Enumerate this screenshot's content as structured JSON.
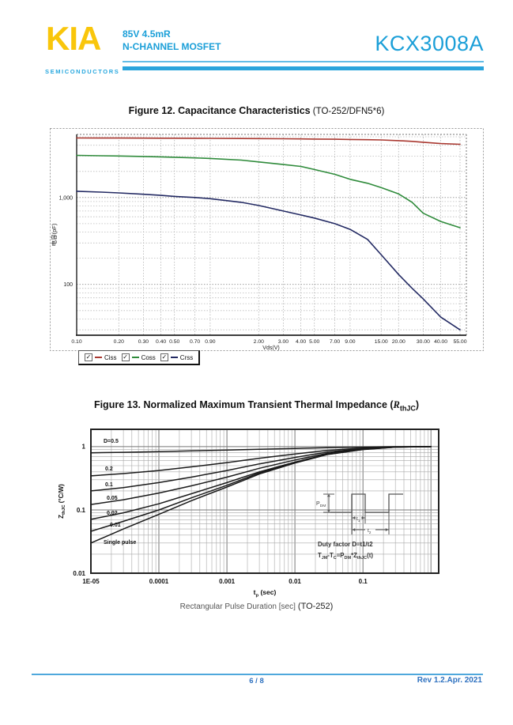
{
  "header": {
    "logo": "KIA",
    "logo_sub": "SEMICONDUCTORS",
    "spec_line1": "85V   4.5mR",
    "spec_line2": "N-CHANNEL MOSFET",
    "part_number": "KCX3008A",
    "accent_color": "#1B9FD8",
    "logo_color": "#F9C60B"
  },
  "figure12": {
    "title": "Figure 12. Capacitance Characteristics",
    "title_suffix": " (TO-252/DFN5*6)",
    "legend": [
      {
        "label": "Ciss",
        "color": "#A93830"
      },
      {
        "label": "Coss",
        "color": "#2F8B3B"
      },
      {
        "label": "Crss",
        "color": "#232A63"
      }
    ]
  },
  "figure13": {
    "title_main": "Figure 13. Normalized Maximum Transient Thermal Impedance (",
    "title_sym": "R",
    "title_sub": "thJC",
    "title_close": ")",
    "caption": "Rectangular Pulse Duration [sec]",
    "caption_suffix": " (TO-252)",
    "inset": {
      "p_main": "P",
      "p_sub": "DM",
      "t1_main": "t",
      "t1_sub": "1",
      "t2_main": "t",
      "t2_sub": "2",
      "line1": "Duty factor D=t1/t2",
      "line2_parts": [
        [
          "T",
          "JM"
        ],
        [
          "-T",
          "C"
        ],
        [
          "=P",
          "DM"
        ],
        [
          "*Z",
          "thJC"
        ],
        [
          "(t)",
          ""
        ]
      ]
    }
  },
  "footer": {
    "page": "6 / 8",
    "rev": "Rev 1.2.Apr. 2021",
    "color": "#2F72C0"
  },
  "chart_data": [
    {
      "id": "fig12",
      "type": "line",
      "title": "Figure 12. Capacitance Characteristics (TO-252/DFN5*6)",
      "x_scale": "log",
      "y_scale": "log",
      "grid": "dotted",
      "xlabel": "Vds(V)",
      "ylabel": "电容(pF)",
      "xlim": [
        0.1,
        61
      ],
      "ylim": [
        26,
        5330
      ],
      "x_ticks": [
        0.1,
        0.2,
        0.3,
        0.4,
        0.5,
        0.7,
        0.9,
        2,
        3,
        4,
        5,
        7,
        9,
        15,
        20,
        30,
        40,
        55
      ],
      "x_tick_labels": [
        "0.10",
        "0.20",
        "0.30",
        "0.40",
        "0.50",
        "0.70",
        "0.90",
        "2.00",
        "3.00",
        "4.00",
        "5.00",
        "7.00",
        "9.00",
        "15.00",
        "20.00",
        "30.00",
        "40.00",
        "55.00"
      ],
      "y_ticks": [
        1000,
        100
      ],
      "y_tick_labels": [
        "1,000",
        "100"
      ],
      "x": [
        0.1,
        0.15,
        0.2,
        0.3,
        0.4,
        0.5,
        0.7,
        0.9,
        1.5,
        2,
        3,
        4,
        5,
        7,
        9,
        12,
        15,
        20,
        25,
        30,
        40,
        55
      ],
      "series": [
        {
          "name": "Ciss",
          "color": "#A93830",
          "values": [
            4850,
            4845,
            4840,
            4830,
            4820,
            4815,
            4805,
            4795,
            4780,
            4770,
            4750,
            4730,
            4715,
            4690,
            4665,
            4630,
            4600,
            4520,
            4430,
            4330,
            4180,
            4100
          ]
        },
        {
          "name": "Coss",
          "color": "#2F8B3B",
          "values": [
            3060,
            3030,
            3010,
            2970,
            2940,
            2910,
            2860,
            2820,
            2700,
            2570,
            2400,
            2280,
            2100,
            1850,
            1620,
            1460,
            1300,
            1100,
            880,
            660,
            530,
            450
          ]
        },
        {
          "name": "Crss",
          "color": "#232A63",
          "values": [
            1180,
            1155,
            1130,
            1090,
            1060,
            1030,
            1000,
            970,
            880,
            810,
            700,
            630,
            580,
            500,
            430,
            330,
            220,
            130,
            90,
            68,
            42,
            30
          ]
        }
      ]
    },
    {
      "id": "fig13",
      "type": "line",
      "title": "Figure 13. Normalized Maximum Transient Thermal Impedance (RthJC)",
      "x_scale": "log",
      "y_scale": "log",
      "grid": "solid",
      "xlabel_parts": [
        [
          "t",
          "p"
        ],
        [
          " (sec)",
          ""
        ]
      ],
      "ylabel_parts": [
        [
          "Z",
          "thJC"
        ],
        [
          " (°C/W)",
          ""
        ]
      ],
      "xlim": [
        1e-05,
        1.3
      ],
      "ylim": [
        0.01,
        1.88
      ],
      "x_ticks": [
        1e-05,
        0.0001,
        0.001,
        0.01,
        0.1
      ],
      "x_tick_labels": [
        "1E-05",
        "0.0001",
        "0.001",
        "0.01",
        "0.1"
      ],
      "y_ticks": [
        1,
        0.1,
        0.01
      ],
      "y_tick_labels": [
        "1",
        "0.1",
        "0.01"
      ],
      "x": [
        1e-05,
        3e-05,
        0.0001,
        0.0003,
        0.001,
        0.003,
        0.01,
        0.03,
        0.1,
        0.3,
        1.0
      ],
      "series": [
        {
          "name": "D=0.5",
          "color": "#1a1a1a",
          "values": [
            0.8,
            0.815,
            0.835,
            0.858,
            0.882,
            0.91,
            0.938,
            0.963,
            0.985,
            1.0,
            1.0
          ]
        },
        {
          "name": "0.2",
          "color": "#1a1a1a",
          "values": [
            0.345,
            0.375,
            0.42,
            0.48,
            0.56,
            0.655,
            0.765,
            0.875,
            0.95,
            0.99,
            1.0
          ]
        },
        {
          "name": "0.1",
          "color": "#1a1a1a",
          "values": [
            0.2,
            0.225,
            0.27,
            0.33,
            0.42,
            0.535,
            0.675,
            0.82,
            0.93,
            0.99,
            1.0
          ]
        },
        {
          "name": "0.05",
          "color": "#1a1a1a",
          "values": [
            0.122,
            0.145,
            0.185,
            0.24,
            0.33,
            0.455,
            0.615,
            0.785,
            0.915,
            0.985,
            1.0
          ]
        },
        {
          "name": "0.02",
          "color": "#1a1a1a",
          "values": [
            0.071,
            0.09,
            0.125,
            0.18,
            0.27,
            0.4,
            0.57,
            0.76,
            0.91,
            0.985,
            1.0
          ]
        },
        {
          "name": "0.01",
          "color": "#1a1a1a",
          "values": [
            0.046,
            0.066,
            0.1,
            0.155,
            0.245,
            0.385,
            0.56,
            0.755,
            0.905,
            0.985,
            1.0
          ]
        },
        {
          "name": "Single pulse",
          "color": "#1a1a1a",
          "values": [
            0.03,
            0.05,
            0.085,
            0.14,
            0.23,
            0.37,
            0.55,
            0.75,
            0.9,
            0.98,
            1.0
          ]
        }
      ]
    }
  ]
}
